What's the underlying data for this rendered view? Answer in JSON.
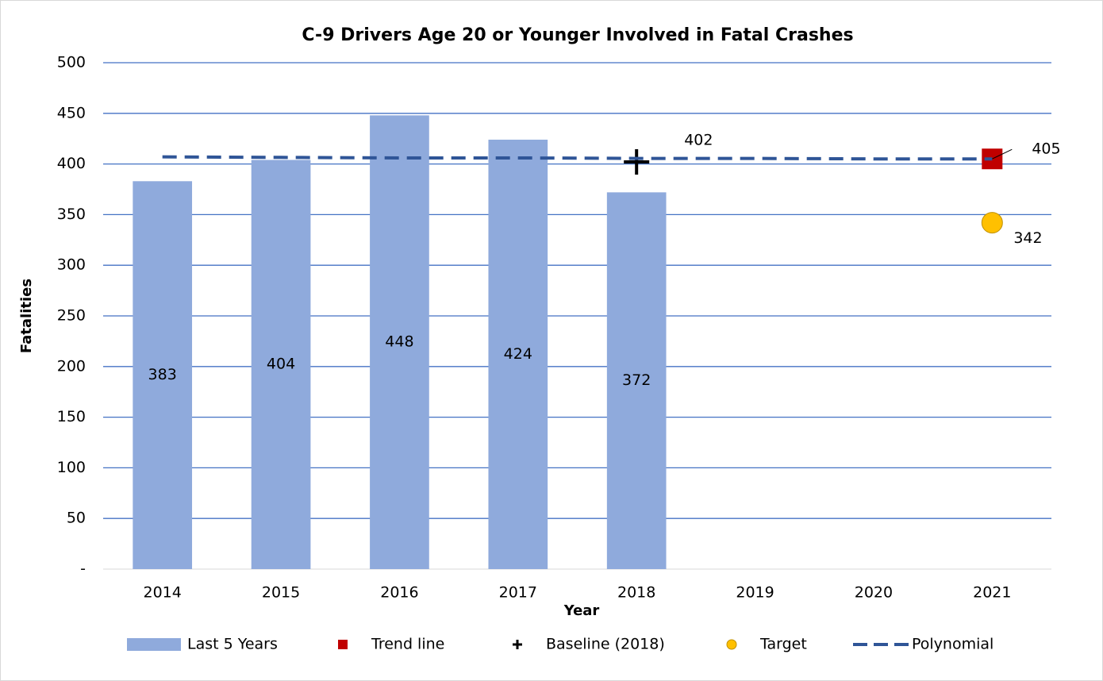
{
  "chart_data": {
    "type": "bar",
    "title": "C-9 Drivers Age 20 or Younger Involved in Fatal Crashes",
    "x_label": "Year",
    "y_label": "Fatalities",
    "categories": [
      "2014",
      "2015",
      "2016",
      "2017",
      "2018",
      "2019",
      "2020",
      "2021"
    ],
    "ylim": [
      0,
      500
    ],
    "yticks": [
      {
        "value": 0,
        "label": "-"
      },
      50,
      100,
      150,
      200,
      250,
      300,
      350,
      400,
      450,
      500
    ],
    "grid": true,
    "legend": "bottom",
    "series": [
      {
        "name": "Last 5 Years",
        "color": "#8faadc",
        "marker": "bar",
        "values": [
          383,
          404,
          448,
          424,
          372,
          null,
          null,
          null
        ]
      },
      {
        "name": "Trend line",
        "color": "#c00000",
        "marker": "square",
        "values": [
          null,
          null,
          null,
          null,
          null,
          null,
          null,
          405
        ]
      },
      {
        "name": "Baseline (2018)",
        "color": "#000000",
        "marker": "plus",
        "values": [
          null,
          null,
          null,
          null,
          402,
          null,
          null,
          null
        ]
      },
      {
        "name": "Target",
        "color": "#ffc000",
        "marker": "circle",
        "values": [
          null,
          null,
          null,
          null,
          null,
          null,
          null,
          342
        ]
      },
      {
        "name": "Polynomial",
        "color": "#2f5597",
        "marker": "dashed",
        "values": [
          407,
          406.5,
          406,
          406,
          405.5,
          405.5,
          405,
          405
        ]
      }
    ]
  }
}
